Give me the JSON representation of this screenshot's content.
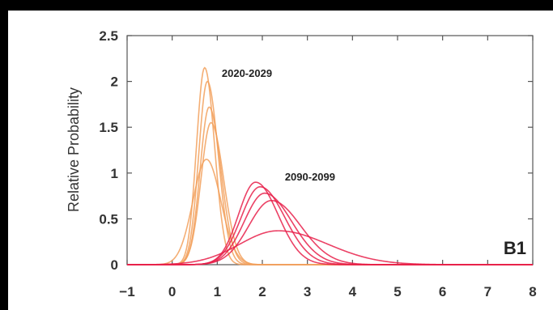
{
  "chart_data": {
    "type": "line",
    "ylabel": "Relative Probability",
    "panel_label": "B1",
    "xlim": [
      -1,
      8
    ],
    "ylim": [
      0,
      2.5
    ],
    "x_ticks": [
      -1,
      0,
      1,
      2,
      3,
      4,
      5,
      6,
      7,
      8
    ],
    "y_ticks": [
      0,
      0.5,
      1,
      1.5,
      2,
      2.5
    ],
    "x_tick_labels": [
      "−1",
      "0",
      "1",
      "2",
      "3",
      "4",
      "5",
      "6",
      "7",
      "8"
    ],
    "y_tick_labels": [
      "0",
      "0.5",
      "1",
      "1.5",
      "2",
      "2.5"
    ],
    "annotations": [
      {
        "text": "2020-2029",
        "x": 1.1,
        "y": 2.05
      },
      {
        "text": "2090-2099",
        "x": 2.5,
        "y": 0.92
      }
    ],
    "colors": {
      "period_2020_2029": "#f2a05c",
      "period_2090_2099": "#e8204a"
    },
    "series": [
      {
        "group": "2020-2029",
        "color": "#f2a05c",
        "peak_x": 0.72,
        "peak_y": 2.15,
        "sigma_left": 0.18,
        "sigma_right": 0.22
      },
      {
        "group": "2020-2029",
        "color": "#f2a05c",
        "peak_x": 0.78,
        "peak_y": 2.0,
        "sigma_left": 0.19,
        "sigma_right": 0.24
      },
      {
        "group": "2020-2029",
        "color": "#f2a05c",
        "peak_x": 0.82,
        "peak_y": 1.72,
        "sigma_left": 0.2,
        "sigma_right": 0.26
      },
      {
        "group": "2020-2029",
        "color": "#f2a05c",
        "peak_x": 0.86,
        "peak_y": 1.55,
        "sigma_left": 0.22,
        "sigma_right": 0.28
      },
      {
        "group": "2020-2029",
        "color": "#f2a05c",
        "peak_x": 0.76,
        "peak_y": 1.15,
        "sigma_left": 0.3,
        "sigma_right": 0.32
      },
      {
        "group": "2090-2099",
        "color": "#e8204a",
        "peak_x": 1.85,
        "peak_y": 0.9,
        "sigma_left": 0.38,
        "sigma_right": 0.5
      },
      {
        "group": "2090-2099",
        "color": "#e8204a",
        "peak_x": 1.95,
        "peak_y": 0.85,
        "sigma_left": 0.42,
        "sigma_right": 0.55
      },
      {
        "group": "2090-2099",
        "color": "#e8204a",
        "peak_x": 2.05,
        "peak_y": 0.78,
        "sigma_left": 0.45,
        "sigma_right": 0.6
      },
      {
        "group": "2090-2099",
        "color": "#e8204a",
        "peak_x": 2.2,
        "peak_y": 0.7,
        "sigma_left": 0.5,
        "sigma_right": 0.65
      },
      {
        "group": "2090-2099",
        "color": "#e8204a",
        "peak_x": 2.35,
        "peak_y": 0.37,
        "sigma_left": 0.85,
        "sigma_right": 1.1
      }
    ]
  }
}
